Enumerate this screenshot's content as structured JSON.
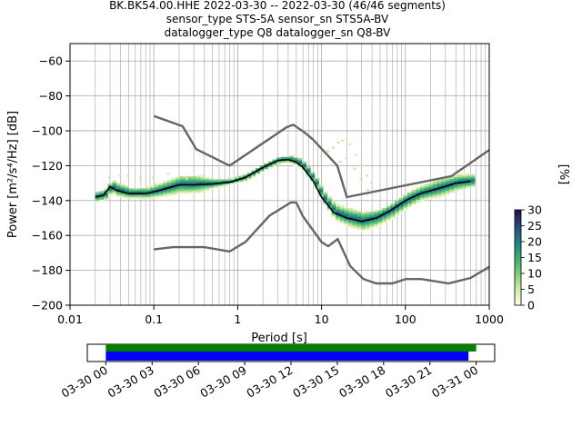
{
  "chart_data": {
    "type": "heatmap",
    "title_lines": [
      "BK.BK54.00.HHE   2022-03-30 -- 2022-03-30  (46/46 segments)",
      "sensor_type STS-5A sensor_sn STS5A-BV",
      "datalogger_type Q8 datalogger_sn Q8-BV"
    ],
    "xlabel": "Period [s]",
    "ylabel": "Power [m²/s⁴/Hz] [dB]",
    "xscale": "log",
    "xlim": [
      0.01,
      1000
    ],
    "ylim": [
      -200,
      -50
    ],
    "xticks": [
      {
        "v": 0.01,
        "label": "0.01"
      },
      {
        "v": 0.1,
        "label": "0.1"
      },
      {
        "v": 1,
        "label": "1"
      },
      {
        "v": 10,
        "label": "10"
      },
      {
        "v": 100,
        "label": "100"
      },
      {
        "v": 1000,
        "label": "1000"
      }
    ],
    "yticks": [
      {
        "v": -60,
        "label": "−60"
      },
      {
        "v": -80,
        "label": "−80"
      },
      {
        "v": -100,
        "label": "−100"
      },
      {
        "v": -120,
        "label": "−120"
      },
      {
        "v": -140,
        "label": "−140"
      },
      {
        "v": -160,
        "label": "−160"
      },
      {
        "v": -180,
        "label": "−180"
      },
      {
        "v": -200,
        "label": "−200"
      }
    ],
    "grid": true,
    "colorbar": {
      "label": "[%]",
      "range": [
        0,
        30
      ],
      "ticks": [
        {
          "v": 0,
          "label": "0"
        },
        {
          "v": 5,
          "label": "5"
        },
        {
          "v": 10,
          "label": "10"
        },
        {
          "v": 15,
          "label": "15"
        },
        {
          "v": 20,
          "label": "20"
        },
        {
          "v": 25,
          "label": "25"
        },
        {
          "v": 30,
          "label": "30"
        }
      ]
    },
    "nhnm": {
      "x": [
        0.1,
        0.22,
        0.32,
        0.8,
        3.8,
        4.6,
        6.3,
        7.9,
        15.4,
        20,
        354.8,
        1000
      ],
      "y": [
        -91.5,
        -97.4,
        -110.5,
        -120,
        -98,
        -96.5,
        -101,
        -105,
        -120,
        -138,
        -126,
        -111
      ]
    },
    "nlnm": {
      "x": [
        0.1,
        0.17,
        0.4,
        0.8,
        1.24,
        2.4,
        4.3,
        5,
        6,
        10,
        12,
        15.6,
        21.9,
        31.6,
        45,
        70,
        101,
        154,
        328,
        600,
        1000
      ],
      "y": [
        -168,
        -166.7,
        -166.7,
        -169.2,
        -163.7,
        -148.6,
        -141.1,
        -141.1,
        -149,
        -163.8,
        -166.2,
        -162.1,
        -177.5,
        -185,
        -187.5,
        -187.5,
        -185,
        -185,
        -187.5,
        -184.4,
        -178
      ]
    },
    "mean": {
      "x": [
        0.02,
        0.025,
        0.03,
        0.035,
        0.05,
        0.08,
        0.12,
        0.2,
        0.3,
        0.5,
        0.8,
        1.2,
        2,
        3,
        4,
        5,
        6,
        8,
        10,
        14,
        20,
        30,
        45,
        65,
        100,
        150,
        250,
        400,
        600
      ],
      "y": [
        -138,
        -137,
        -132,
        -134,
        -136,
        -136,
        -134,
        -131,
        -131,
        -130.5,
        -129.5,
        -127,
        -121,
        -117,
        -116.5,
        -118,
        -121,
        -129,
        -138,
        -147,
        -150,
        -152,
        -150,
        -146,
        -140,
        -136,
        -133,
        -130,
        -129
      ]
    },
    "band": {
      "x": [
        0.02,
        0.025,
        0.03,
        0.035,
        0.05,
        0.08,
        0.12,
        0.2,
        0.3,
        0.5,
        0.8,
        1.2,
        2,
        3,
        4,
        5,
        6,
        8,
        10,
        14,
        20,
        30,
        45,
        65,
        100,
        150,
        250,
        400,
        600
      ],
      "low": [
        -141,
        -140,
        -136,
        -138,
        -139,
        -139,
        -138,
        -136,
        -136,
        -133,
        -131,
        -129,
        -123,
        -119,
        -119,
        -121,
        -124,
        -132,
        -141,
        -151,
        -155,
        -158,
        -155,
        -151,
        -145,
        -140,
        -138,
        -134,
        -132
      ],
      "high": [
        -135,
        -134,
        -129,
        -130,
        -133,
        -133,
        -130,
        -126,
        -126,
        -128,
        -128,
        -125,
        -119,
        -115,
        -115,
        -116,
        -118,
        -126,
        -134,
        -142,
        -145,
        -147,
        -146,
        -142,
        -136,
        -132,
        -128,
        -125,
        -125
      ]
    },
    "sparse_points": [
      {
        "x": 0.03,
        "y": -127
      },
      {
        "x": 0.04,
        "y": -126
      },
      {
        "x": 0.05,
        "y": -126
      },
      {
        "x": 0.07,
        "y": -127
      },
      {
        "x": 0.1,
        "y": -127
      },
      {
        "x": 0.15,
        "y": -125
      },
      {
        "x": 0.25,
        "y": -128
      },
      {
        "x": 0.4,
        "y": -126
      },
      {
        "x": 10,
        "y": -115
      },
      {
        "x": 12,
        "y": -112
      },
      {
        "x": 14,
        "y": -110
      },
      {
        "x": 16,
        "y": -107
      },
      {
        "x": 18,
        "y": -106
      },
      {
        "x": 22,
        "y": -108
      },
      {
        "x": 26,
        "y": -114
      },
      {
        "x": 30,
        "y": -120
      },
      {
        "x": 35,
        "y": -126
      },
      {
        "x": 40,
        "y": -130
      },
      {
        "x": 13,
        "y": -120
      },
      {
        "x": 17,
        "y": -118
      },
      {
        "x": 20,
        "y": -116
      },
      {
        "x": 25,
        "y": -122
      },
      {
        "x": 30,
        "y": -128
      },
      {
        "x": 36,
        "y": -134
      }
    ]
  },
  "timeline": {
    "ticks": [
      "03-30 00",
      "03-30 03",
      "03-30 06",
      "03-30 09",
      "03-30 12",
      "03-30 15",
      "03-30 18",
      "03-30 21",
      "03-31 00"
    ],
    "tick_hours": [
      0,
      3,
      6,
      9,
      12,
      15,
      18,
      21,
      24
    ],
    "range_hours": [
      -1.2,
      25.2
    ],
    "green_bar_hours": [
      0,
      24
    ],
    "blue_bar_hours": [
      0,
      23.5
    ],
    "colors": {
      "green": "#008000",
      "blue": "#0000ff"
    }
  }
}
